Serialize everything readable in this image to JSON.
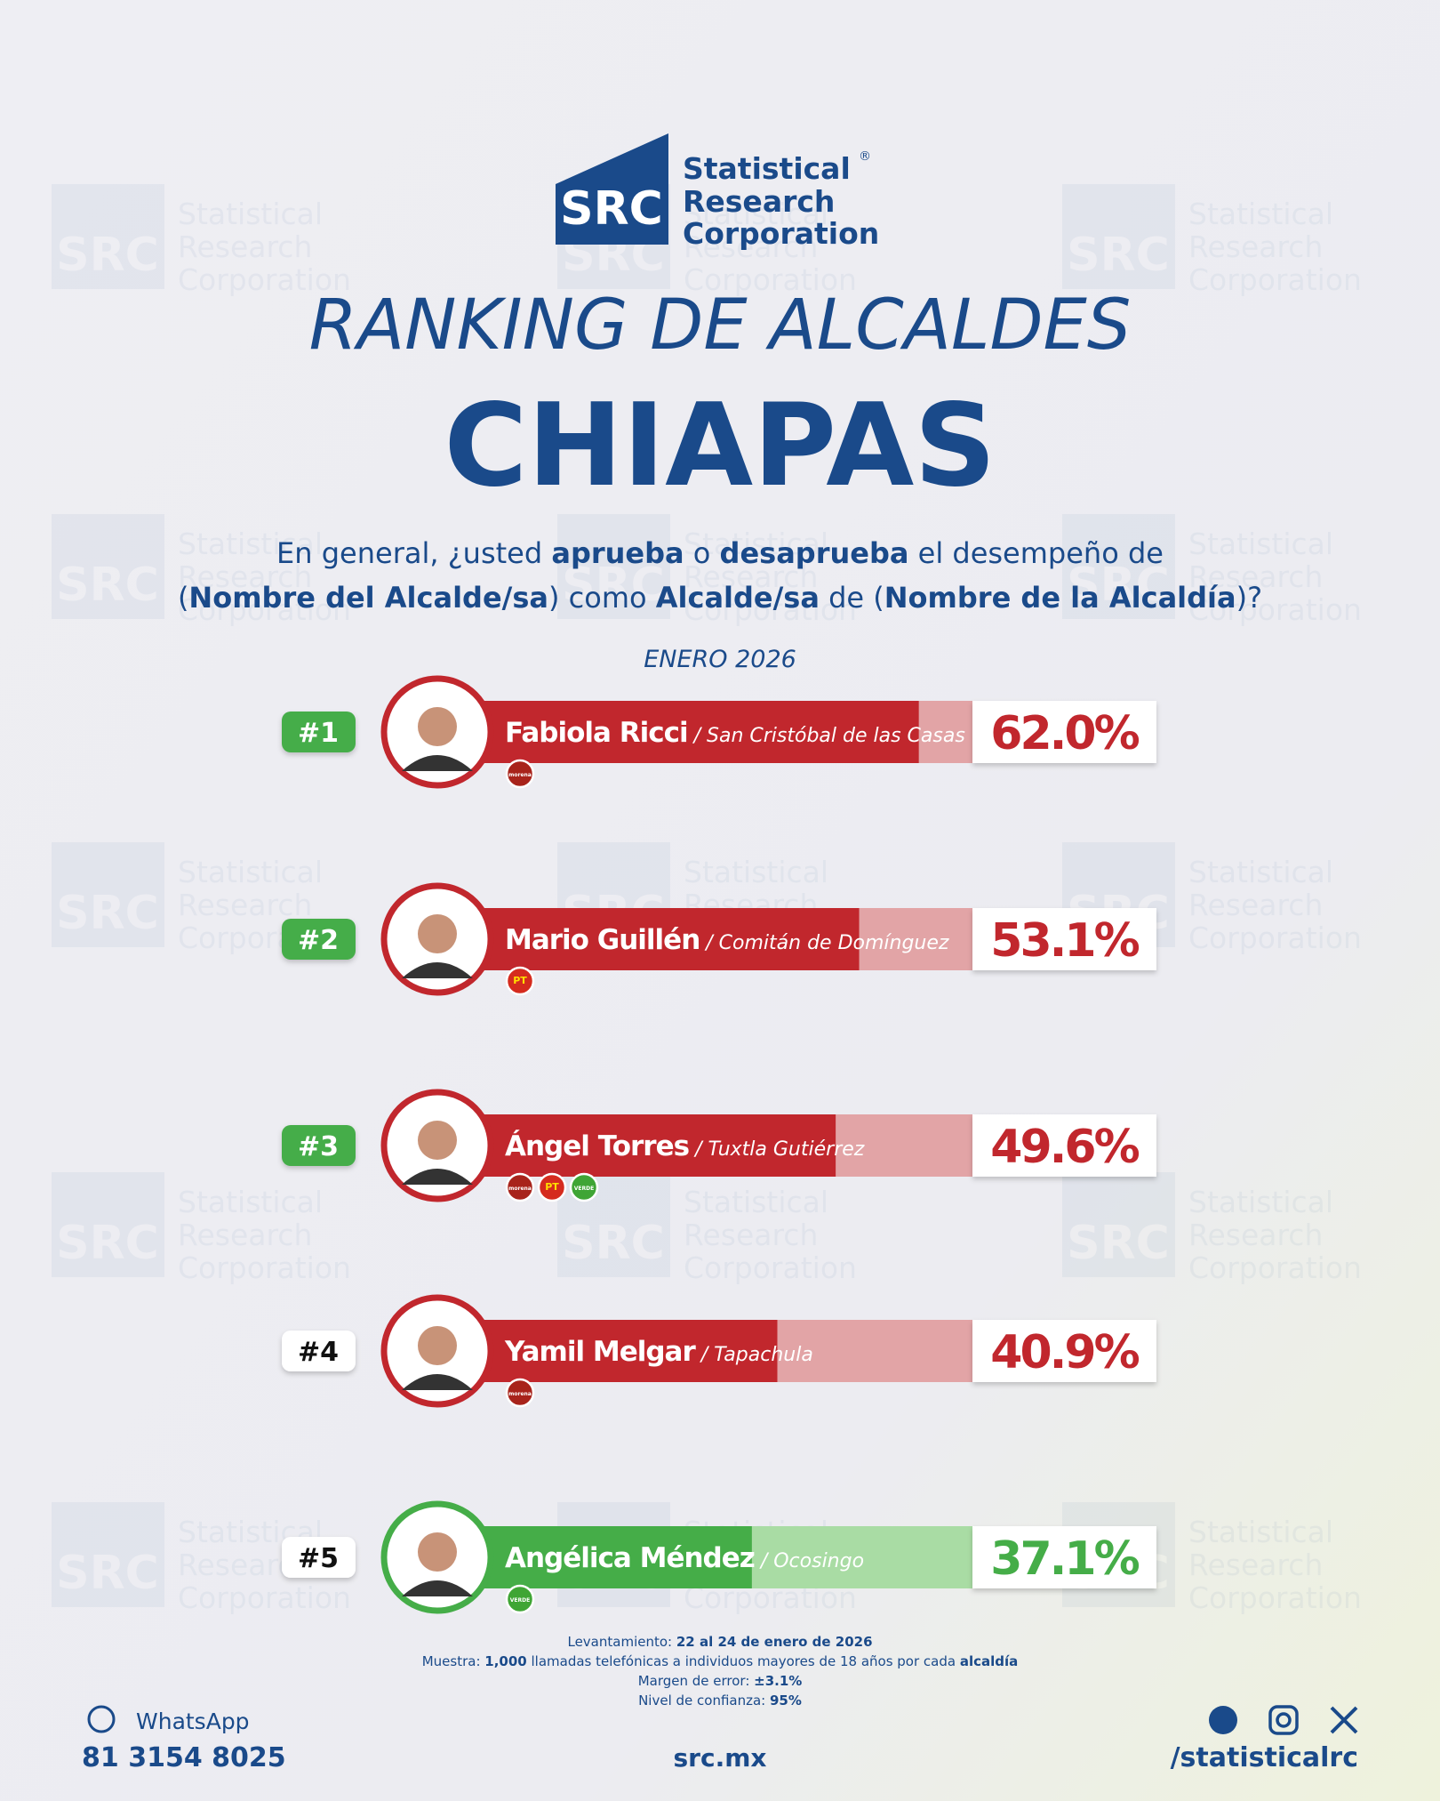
{
  "logo": {
    "mark": "SRC",
    "name": [
      "Statistical",
      "Research",
      "Corporation"
    ],
    "registered": "®"
  },
  "chart_data": {
    "type": "bar",
    "title": "RANKING DE ALCALDES",
    "subtitle": "CHIAPAS",
    "question": [
      [
        {
          "text": "En general, ¿usted ",
          "bold": false
        },
        {
          "text": "aprueba",
          "bold": true
        },
        {
          "text": " o ",
          "bold": false
        },
        {
          "text": "desaprueba",
          "bold": true
        },
        {
          "text": " el desempeño de",
          "bold": false
        }
      ],
      [
        {
          "text": "(",
          "bold": false
        },
        {
          "text": "Nombre del Alcalde/sa",
          "bold": true
        },
        {
          "text": ") como ",
          "bold": false
        },
        {
          "text": "Alcalde/sa",
          "bold": true
        },
        {
          "text": " de (",
          "bold": false
        },
        {
          "text": "Nombre de la Alcaldía",
          "bold": true
        },
        {
          "text": ")?",
          "bold": false
        }
      ]
    ],
    "date": "ENERO 2026",
    "ranks": [
      "#1",
      "#2",
      "#3",
      "#4",
      "#5"
    ],
    "rank_highlight": [
      true,
      true,
      true,
      false,
      false
    ],
    "categories": [
      "Fabiola Ricci",
      "Mario Guillén",
      "Ángel Torres",
      "Yamil Melgar",
      "Angélica Méndez"
    ],
    "places": [
      "/ San Cristóbal de las Casas",
      "/ Comitán de Domínguez",
      "/ Tuxtla Gutiérrez",
      "/ Tapachula",
      "/ Ocosingo"
    ],
    "parties": [
      [
        "morena"
      ],
      [
        "PT"
      ],
      [
        "morena",
        "PT",
        "VERDE"
      ],
      [
        "morena"
      ],
      [
        "VERDE"
      ]
    ],
    "values": [
      62.0,
      53.1,
      49.6,
      40.9,
      37.1
    ],
    "value_labels": [
      "62.0%",
      "53.1%",
      "49.6%",
      "40.9%",
      "37.1%"
    ],
    "colors": [
      "#c1272d",
      "#c1272d",
      "#c1272d",
      "#c1272d",
      "#45ad48"
    ],
    "light_colors": [
      "#e2a4a6",
      "#e2a4a6",
      "#e2a4a6",
      "#e2a4a6",
      "#a9dca4"
    ],
    "xlim": [
      0,
      70
    ]
  },
  "notes": [
    [
      {
        "text": "Levantamiento: ",
        "bold": false
      },
      {
        "text": "22 al 24 de enero de 2026",
        "bold": true
      }
    ],
    [
      {
        "text": "Muestra: ",
        "bold": false
      },
      {
        "text": "1,000",
        "bold": true
      },
      {
        "text": " llamadas telefónicas a individuos mayores de 18 años por cada ",
        "bold": false
      },
      {
        "text": "alcaldía",
        "bold": true
      }
    ],
    [
      {
        "text": "Margen de error: ",
        "bold": false
      },
      {
        "text": "±3.1%",
        "bold": true
      }
    ],
    [
      {
        "text": "Nivel de confianza: ",
        "bold": false
      },
      {
        "text": "95%",
        "bold": true
      }
    ]
  ],
  "contact": {
    "whatsapp": "WhatsApp",
    "phone": "81 3154 8025",
    "website": "src.mx",
    "social": "/statisticalrc"
  }
}
